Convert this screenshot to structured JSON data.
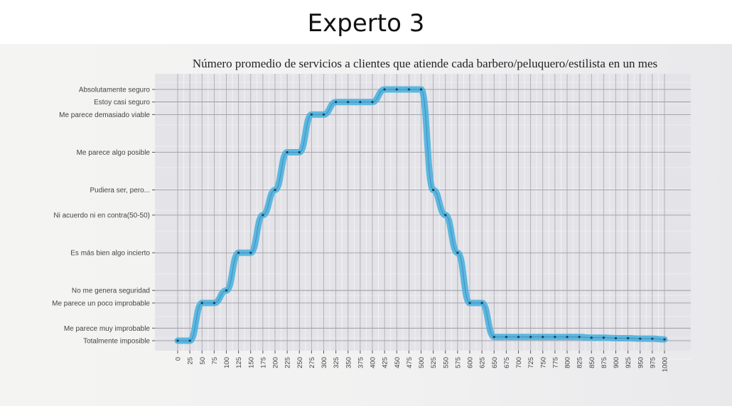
{
  "header": {
    "title": "Experto 3"
  },
  "chart_data": {
    "type": "line",
    "title": "Número promedio de servicios a clientes que atiende cada barbero/peluquero/estilista en un mes",
    "xlabel": "",
    "ylabel": "",
    "xlim": [
      0,
      1000
    ],
    "x_ticks": [
      "0",
      "25",
      "50",
      "75",
      "100",
      "125",
      "150",
      "175",
      "200",
      "225",
      "250",
      "275",
      "300",
      "325",
      "350",
      "375",
      "400",
      "425",
      "450",
      "475",
      "500",
      "525",
      "550",
      "575",
      "600",
      "625",
      "650",
      "675",
      "700",
      "725",
      "750",
      "775",
      "800",
      "825",
      "850",
      "875",
      "900",
      "925",
      "950",
      "975",
      "1000"
    ],
    "y_categories": [
      "Totalmente imposible",
      "Me parece muy improbable",
      "Me parece un poco improbable",
      "No me genera seguridad",
      "Es más bien algo incierto",
      "Ni acuerdo ni en contra(50-50)",
      "Pudiera ser, pero...",
      "Me parece algo posible",
      "Me parece demasiado viable",
      "Estoy casi seguro",
      "Absolutamente seguro"
    ],
    "y_scale": [
      0,
      0.05,
      0.15,
      0.2,
      0.35,
      0.5,
      0.6,
      0.75,
      0.9,
      0.95,
      1.0
    ],
    "series": [
      {
        "name": "Experto 3",
        "color": "#4fb3de",
        "x": [
          0,
          25,
          50,
          75,
          100,
          125,
          150,
          175,
          200,
          225,
          250,
          275,
          300,
          325,
          350,
          375,
          400,
          425,
          450,
          475,
          500,
          525,
          550,
          575,
          600,
          625,
          650,
          675,
          700,
          725,
          750,
          775,
          800,
          825,
          850,
          875,
          900,
          925,
          950,
          975,
          1000
        ],
        "y": [
          0,
          0,
          0.15,
          0.15,
          0.2,
          0.35,
          0.35,
          0.5,
          0.6,
          0.75,
          0.75,
          0.9,
          0.9,
          0.95,
          0.95,
          0.95,
          0.95,
          1.0,
          1.0,
          1.0,
          1.0,
          0.6,
          0.5,
          0.35,
          0.15,
          0.15,
          0.015,
          0.015,
          0.015,
          0.015,
          0.015,
          0.015,
          0.015,
          0.015,
          0.012,
          0.012,
          0.01,
          0.01,
          0.008,
          0.008,
          0.005
        ]
      }
    ],
    "grid": true,
    "legend": "none"
  }
}
